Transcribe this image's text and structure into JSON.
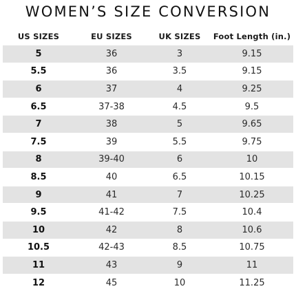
{
  "title": "WOMEN’S SIZE CONVERSION",
  "colors": {
    "stripe": "#e3e3e3",
    "background": "#ffffff",
    "text": "#1a1a1a"
  },
  "headers": [
    "US SIZES",
    "EU SIZES",
    "UK SIZES",
    "Foot Length (in.)"
  ],
  "rows": [
    [
      "5",
      "36",
      "3",
      "9.15"
    ],
    [
      "5.5",
      "36",
      "3.5",
      "9.15"
    ],
    [
      "6",
      "37",
      "4",
      "9.25"
    ],
    [
      "6.5",
      "37-38",
      "4.5",
      "9.5"
    ],
    [
      "7",
      "38",
      "5",
      "9.65"
    ],
    [
      "7.5",
      "39",
      "5.5",
      "9.75"
    ],
    [
      "8",
      "39-40",
      "6",
      "10"
    ],
    [
      "8.5",
      "40",
      "6.5",
      "10.15"
    ],
    [
      "9",
      "41",
      "7",
      "10.25"
    ],
    [
      "9.5",
      "41-42",
      "7.5",
      "10.4"
    ],
    [
      "10",
      "42",
      "8",
      "10.6"
    ],
    [
      "10.5",
      "42-43",
      "8.5",
      "10.75"
    ],
    [
      "11",
      "43",
      "9",
      "11"
    ],
    [
      "12",
      "45",
      "10",
      "11.25"
    ]
  ]
}
